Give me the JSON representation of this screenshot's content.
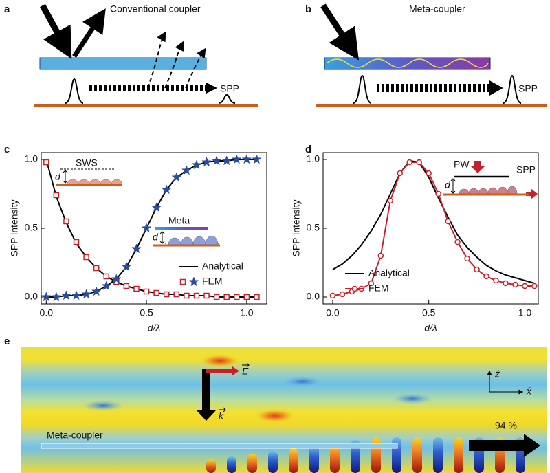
{
  "panels": {
    "a": {
      "label": "a",
      "title": "Conventional coupler",
      "spp": "SPP"
    },
    "b": {
      "label": "b",
      "title": "Meta-coupler",
      "spp": "SPP"
    },
    "e": {
      "label": "e",
      "coupler": "Meta-coupler",
      "e_field": "E",
      "k_vector": "k",
      "z_axis": "ẑ",
      "x_axis": "x̂",
      "transmission": "94 %"
    }
  },
  "chart_data": [
    {
      "type": "line",
      "label": "c",
      "x_label": "d/λ",
      "y_label": "SPP intensity",
      "annotations": [
        "SWS",
        "d",
        "Meta",
        "d"
      ],
      "xlim": [
        -0.025,
        1.1
      ],
      "ylim": [
        -0.05,
        1.05
      ],
      "xticks": [
        {
          "value": 0,
          "label": "0.0"
        },
        {
          "value": 0.5,
          "label": "0.5"
        },
        {
          "value": 1,
          "label": "1.0"
        }
      ],
      "yticks": [
        {
          "value": 0,
          "label": "0.0"
        },
        {
          "value": 0.5,
          "label": "0.5"
        },
        {
          "value": 1,
          "label": "1.0"
        }
      ],
      "x": [
        0,
        0.05,
        0.1,
        0.15,
        0.2,
        0.25,
        0.3,
        0.35,
        0.4,
        0.45,
        0.5,
        0.55,
        0.6,
        0.65,
        0.7,
        0.75,
        0.8,
        0.85,
        0.9,
        0.95,
        1.0,
        1.05
      ],
      "series": [
        {
          "name": "Analytical",
          "color": "#000000",
          "line": true,
          "marker": null,
          "values": [
            1.0,
            0.73,
            0.54,
            0.39,
            0.29,
            0.21,
            0.15,
            0.11,
            0.08,
            0.06,
            0.04,
            0.03,
            0.02,
            0.02,
            0.01,
            0.01,
            0.01,
            0.0,
            0.0,
            0.0,
            0.0,
            0.0
          ]
        },
        {
          "name": "Analytical",
          "color": "#000000",
          "line": true,
          "marker": null,
          "values": [
            0.0,
            0.0,
            0.01,
            0.01,
            0.02,
            0.04,
            0.08,
            0.13,
            0.22,
            0.35,
            0.5,
            0.65,
            0.78,
            0.87,
            0.92,
            0.96,
            0.98,
            0.99,
            0.99,
            1.0,
            1.0,
            1.0
          ]
        },
        {
          "name": "FEM",
          "color": "#c8202a",
          "line": false,
          "marker": "square",
          "values": [
            0.98,
            0.74,
            0.55,
            0.4,
            0.29,
            0.21,
            0.15,
            0.11,
            0.08,
            0.06,
            0.04,
            0.03,
            0.02,
            0.02,
            0.01,
            0.01,
            0.01,
            0.0,
            0.0,
            0.0,
            0.0,
            0.0
          ]
        },
        {
          "name": "FEM",
          "color": "#2a4c9c",
          "line": false,
          "marker": "star",
          "values": [
            0.0,
            0.0,
            0.01,
            0.01,
            0.02,
            0.04,
            0.08,
            0.13,
            0.22,
            0.35,
            0.5,
            0.65,
            0.78,
            0.87,
            0.92,
            0.96,
            0.98,
            0.99,
            0.99,
            1.0,
            1.0,
            1.0
          ]
        }
      ]
    },
    {
      "type": "line",
      "label": "d",
      "x_label": "d/λ",
      "y_label": "SPP intensity",
      "annotations": [
        "PW",
        "SPP",
        "d"
      ],
      "xlim": [
        -0.05,
        1.07
      ],
      "ylim": [
        -0.05,
        1.05
      ],
      "xticks": [
        {
          "value": 0,
          "label": "0.0"
        },
        {
          "value": 0.5,
          "label": "0.5"
        },
        {
          "value": 1,
          "label": "1.0"
        }
      ],
      "yticks": [
        {
          "value": 0,
          "label": "0.0"
        },
        {
          "value": 0.5,
          "label": "0.5"
        },
        {
          "value": 1,
          "label": "1.0"
        }
      ],
      "x": [
        0,
        0.05,
        0.1,
        0.15,
        0.2,
        0.25,
        0.3,
        0.35,
        0.4,
        0.45,
        0.5,
        0.55,
        0.6,
        0.65,
        0.7,
        0.75,
        0.8,
        0.85,
        0.9,
        0.95,
        1.0,
        1.05
      ],
      "series": [
        {
          "name": "Analytical",
          "color": "#000000",
          "line": true,
          "marker": null,
          "values": [
            0.2,
            0.24,
            0.3,
            0.38,
            0.48,
            0.6,
            0.75,
            0.9,
            0.99,
            0.98,
            0.87,
            0.72,
            0.58,
            0.45,
            0.36,
            0.29,
            0.23,
            0.19,
            0.16,
            0.14,
            0.12,
            0.1
          ]
        },
        {
          "name": "FEM",
          "color": "#c8202a",
          "line": true,
          "marker": "circle",
          "values": [
            0.01,
            0.02,
            0.04,
            0.06,
            0.1,
            0.3,
            0.7,
            0.9,
            0.98,
            0.98,
            0.9,
            0.75,
            0.55,
            0.4,
            0.28,
            0.2,
            0.15,
            0.12,
            0.1,
            0.09,
            0.08,
            0.08
          ]
        }
      ]
    }
  ]
}
